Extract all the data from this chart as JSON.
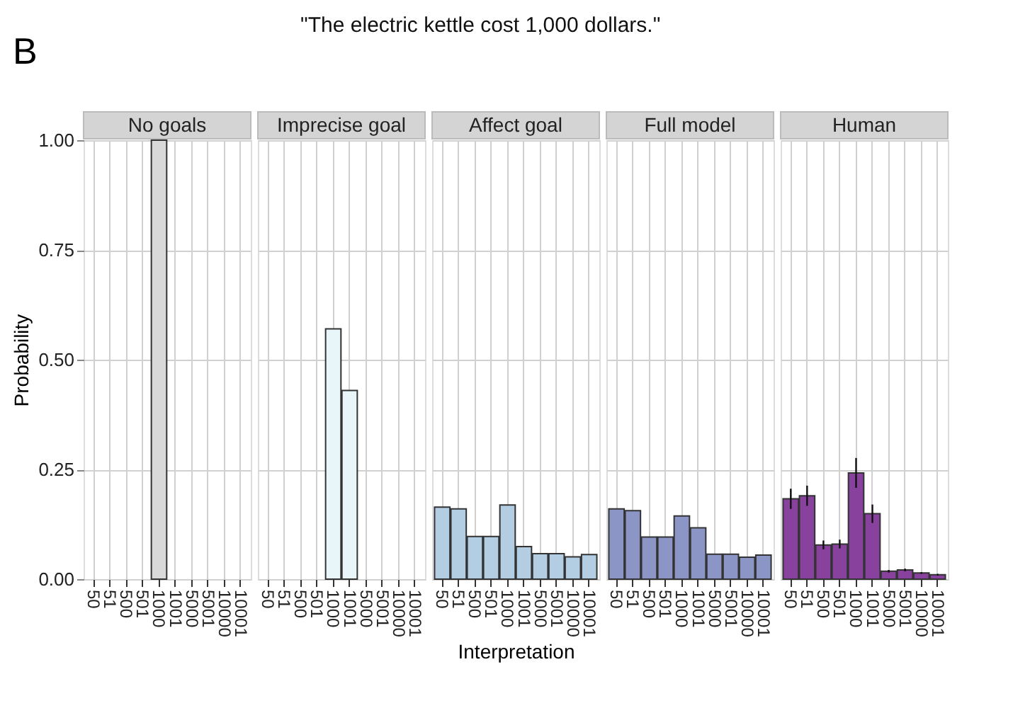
{
  "chart_data": [
    {
      "type": "bar",
      "title": "No goals",
      "annotations": [
        "B",
        "\"The electric kettle cost 1,000 dollars.\""
      ],
      "ylabel": "Probability",
      "categories": [
        "50",
        "51",
        "500",
        "501",
        "1000",
        "1001",
        "5000",
        "5001",
        "10000",
        "10001"
      ],
      "values": [
        null,
        null,
        null,
        null,
        1.0,
        null,
        null,
        null,
        null,
        null
      ],
      "color": "#d9d9d9",
      "ylim": [
        0,
        1
      ],
      "yticks": [
        {
          "value": 0,
          "label": "0.00"
        },
        {
          "value": 0.25,
          "label": "0.25"
        },
        {
          "value": 0.5,
          "label": "0.50"
        },
        {
          "value": 0.75,
          "label": "0.75"
        },
        {
          "value": 1,
          "label": "1.00"
        }
      ],
      "grid": true
    },
    {
      "type": "bar",
      "title": "Imprecise goal",
      "categories": [
        "50",
        "51",
        "500",
        "501",
        "1000",
        "1001",
        "5000",
        "5001",
        "10000",
        "10001"
      ],
      "values": [
        null,
        null,
        null,
        null,
        0.57,
        0.43,
        null,
        null,
        null,
        null
      ],
      "color": "#e8f6f9",
      "ylim": [
        0,
        1
      ],
      "yticks": [
        0,
        0.25,
        0.5,
        0.75,
        1
      ],
      "grid": true,
      "tick_labels": "x"
    },
    {
      "type": "bar",
      "title": "Affect goal",
      "xlabel": "Interpretation",
      "categories": [
        "50",
        "51",
        "500",
        "501",
        "1000",
        "1001",
        "5000",
        "5001",
        "10000",
        "10001"
      ],
      "values": [
        0.164,
        0.16,
        0.097,
        0.097,
        0.169,
        0.074,
        0.058,
        0.058,
        0.051,
        0.056
      ],
      "color": "#b3cde3",
      "ylim": [
        0,
        1
      ],
      "yticks": [
        0,
        0.25,
        0.5,
        0.75,
        1
      ],
      "grid": true,
      "tick_labels": "x"
    },
    {
      "type": "bar",
      "title": "Full model",
      "categories": [
        "50",
        "51",
        "500",
        "501",
        "1000",
        "1001",
        "5000",
        "5001",
        "10000",
        "10001"
      ],
      "values": [
        0.16,
        0.156,
        0.096,
        0.096,
        0.144,
        0.117,
        0.057,
        0.057,
        0.05,
        0.055
      ],
      "color": "#8c96c6",
      "ylim": [
        0,
        1
      ],
      "yticks": [
        0,
        0.25,
        0.5,
        0.75,
        1
      ],
      "grid": true,
      "tick_labels": "x"
    },
    {
      "type": "bar",
      "title": "Human",
      "categories": [
        "50",
        "51",
        "500",
        "501",
        "1000",
        "1001",
        "5000",
        "5001",
        "10000",
        "10001"
      ],
      "values": [
        0.183,
        0.19,
        0.078,
        0.08,
        0.242,
        0.149,
        0.018,
        0.021,
        0.014,
        0.01
      ],
      "errors": [
        0.023,
        0.023,
        0.01,
        0.01,
        0.034,
        0.021,
        0.003,
        0.003,
        0.002,
        0.002
      ],
      "color": "#88419d",
      "ylim": [
        0,
        1
      ],
      "yticks": [
        0,
        0.25,
        0.5,
        0.75,
        1
      ],
      "grid": true,
      "tick_labels": "x"
    }
  ]
}
